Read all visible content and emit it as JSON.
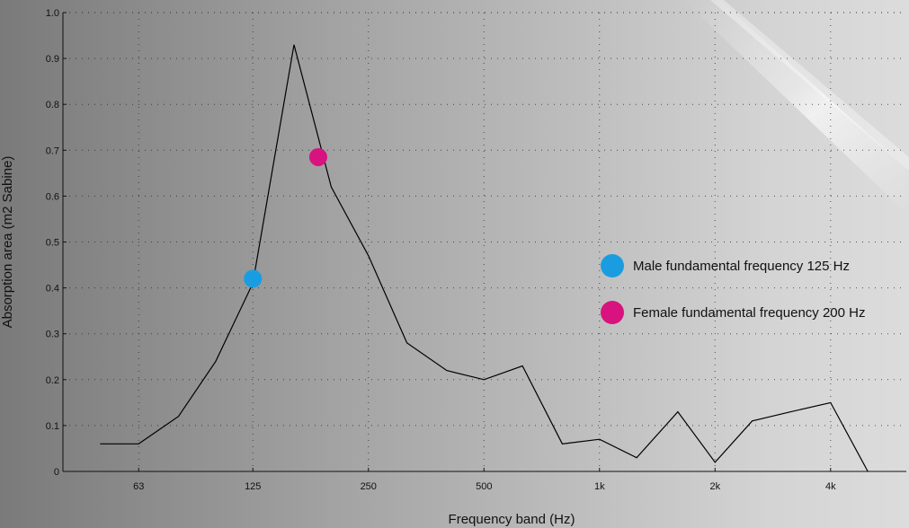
{
  "chart_data": {
    "type": "line",
    "title": "",
    "xlabel": "Frequency band (Hz)",
    "ylabel": "Absorption area (m2 Sabine)",
    "ylim": [
      0,
      1.0
    ],
    "yticks": [
      0,
      0.1,
      0.2,
      0.3,
      0.4,
      0.5,
      0.6,
      0.7,
      0.8,
      0.9,
      1.0
    ],
    "ytick_labels": [
      "0",
      "0.1",
      "0.2",
      "0.3",
      "0.4",
      "0.5",
      "0.6",
      "0.7",
      "0.8",
      "0.9",
      "1.0"
    ],
    "x_scale": "log",
    "xlim": [
      40,
      6300
    ],
    "xticks": [
      63,
      125,
      250,
      500,
      1000,
      2000,
      4000
    ],
    "xtick_labels": [
      "63",
      "125",
      "250",
      "500",
      "1k",
      "2k",
      "4k"
    ],
    "grid": true,
    "series": [
      {
        "x": [
          50,
          63,
          80,
          100,
          125,
          160,
          200,
          250,
          315,
          400,
          500,
          630,
          800,
          1000,
          1250,
          1600,
          2000,
          2500,
          3150,
          4000,
          5000
        ],
        "values": [
          0.06,
          0.06,
          0.12,
          0.24,
          0.41,
          0.93,
          0.62,
          0.47,
          0.28,
          0.22,
          0.2,
          0.23,
          0.06,
          0.07,
          0.03,
          0.13,
          0.02,
          0.11,
          0.13,
          0.15,
          0.0
        ],
        "color": "#000000"
      }
    ],
    "markers": [
      {
        "label": "Male fundamental frequency 125 Hz",
        "x": 125,
        "y": 0.42,
        "color": "#1a9de0"
      },
      {
        "label": "Female fundamental frequency 200 Hz",
        "x": 185,
        "y": 0.685,
        "color": "#d8127e"
      }
    ],
    "legend_position": "right"
  }
}
